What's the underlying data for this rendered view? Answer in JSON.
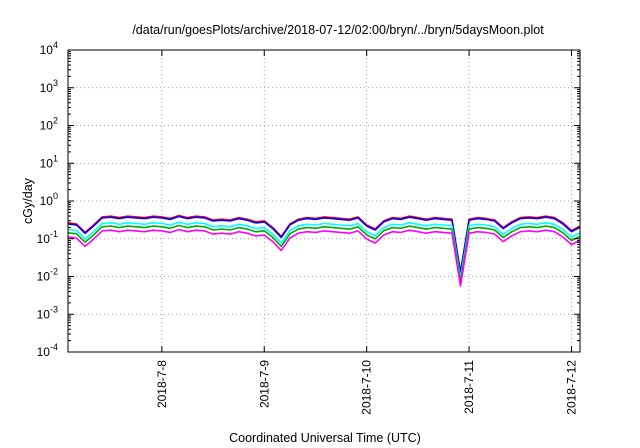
{
  "chart_data": {
    "type": "line",
    "title": "/data/run/goesPlots/archive/2018-07-12/02:00/bryn/../bryn/5daysMoon.plot",
    "xlabel": "Coordinated Universal Time (UTC)",
    "ylabel": "cGy/day",
    "x_range": [
      "2018-07-07T02:00",
      "2018-07-12T02:00"
    ],
    "x_ticks": [
      {
        "label": "2018-7-8",
        "date": "2018-07-08T00:00"
      },
      {
        "label": "2018-7-9",
        "date": "2018-07-09T00:00"
      },
      {
        "label": "2018-7-10",
        "date": "2018-07-10T00:00"
      },
      {
        "label": "2018-7-11",
        "date": "2018-07-11T00:00"
      },
      {
        "label": "2018-7-12",
        "date": "2018-07-12T00:00"
      }
    ],
    "y_scale": "log",
    "ylim": [
      0.0001,
      10000
    ],
    "y_ticks": [
      {
        "base": "10",
        "exp": "-4"
      },
      {
        "base": "10",
        "exp": "-3"
      },
      {
        "base": "10",
        "exp": "-2"
      },
      {
        "base": "10",
        "exp": "-1"
      },
      {
        "base": "10",
        "exp": "0"
      },
      {
        "base": "10",
        "exp": "1"
      },
      {
        "base": "10",
        "exp": "2"
      },
      {
        "base": "10",
        "exp": "3"
      },
      {
        "base": "10",
        "exp": "4"
      }
    ],
    "grid": true,
    "legend": "none",
    "series": [
      {
        "color": "#ff0000",
        "baseline": 0.33
      },
      {
        "color": "#0000ff",
        "baseline": 0.31
      },
      {
        "color": "#00ffff",
        "baseline": 0.22
      },
      {
        "color": "#00aa00",
        "baseline": 0.18
      },
      {
        "color": "#ff00ff",
        "baseline": 0.14
      }
    ],
    "x": [
      "2018-07-07T02:00",
      "2018-07-07T04:00",
      "2018-07-07T06:00",
      "2018-07-07T08:00",
      "2018-07-07T10:00",
      "2018-07-07T12:00",
      "2018-07-07T14:00",
      "2018-07-07T16:00",
      "2018-07-07T18:00",
      "2018-07-07T20:00",
      "2018-07-07T22:00",
      "2018-07-08T00:00",
      "2018-07-08T02:00",
      "2018-07-08T04:00",
      "2018-07-08T06:00",
      "2018-07-08T08:00",
      "2018-07-08T10:00",
      "2018-07-08T12:00",
      "2018-07-08T14:00",
      "2018-07-08T16:00",
      "2018-07-08T18:00",
      "2018-07-08T20:00",
      "2018-07-08T22:00",
      "2018-07-09T00:00",
      "2018-07-09T02:00",
      "2018-07-09T04:00",
      "2018-07-09T06:00",
      "2018-07-09T08:00",
      "2018-07-09T10:00",
      "2018-07-09T12:00",
      "2018-07-09T14:00",
      "2018-07-09T16:00",
      "2018-07-09T18:00",
      "2018-07-09T20:00",
      "2018-07-09T22:00",
      "2018-07-10T00:00",
      "2018-07-10T02:00",
      "2018-07-10T04:00",
      "2018-07-10T06:00",
      "2018-07-10T08:00",
      "2018-07-10T10:00",
      "2018-07-10T12:00",
      "2018-07-10T14:00",
      "2018-07-10T16:00",
      "2018-07-10T18:00",
      "2018-07-10T20:00",
      "2018-07-10T22:00",
      "2018-07-11T00:00",
      "2018-07-11T02:00",
      "2018-07-11T04:00",
      "2018-07-11T06:00",
      "2018-07-11T08:00",
      "2018-07-11T10:00",
      "2018-07-11T12:00",
      "2018-07-11T14:00",
      "2018-07-11T16:00",
      "2018-07-11T18:00",
      "2018-07-11T20:00",
      "2018-07-11T22:00",
      "2018-07-12T00:00",
      "2018-07-12T02:00"
    ],
    "ratio_to_baseline": [
      0.8,
      0.75,
      0.45,
      0.7,
      1.15,
      1.2,
      1.1,
      1.2,
      1.15,
      1.1,
      1.2,
      1.15,
      1.05,
      1.25,
      1.1,
      1.2,
      1.15,
      0.95,
      1.0,
      0.95,
      1.1,
      1.0,
      0.85,
      0.9,
      0.6,
      0.35,
      0.75,
      1.0,
      1.1,
      1.05,
      1.15,
      1.1,
      1.05,
      1.0,
      1.15,
      0.7,
      0.55,
      0.9,
      1.1,
      1.05,
      1.2,
      1.1,
      1.0,
      1.1,
      1.05,
      1.0,
      0.04,
      1.0,
      1.1,
      1.05,
      0.95,
      0.6,
      0.85,
      1.1,
      1.15,
      1.1,
      1.2,
      1.1,
      0.8,
      0.5,
      0.65
    ]
  }
}
